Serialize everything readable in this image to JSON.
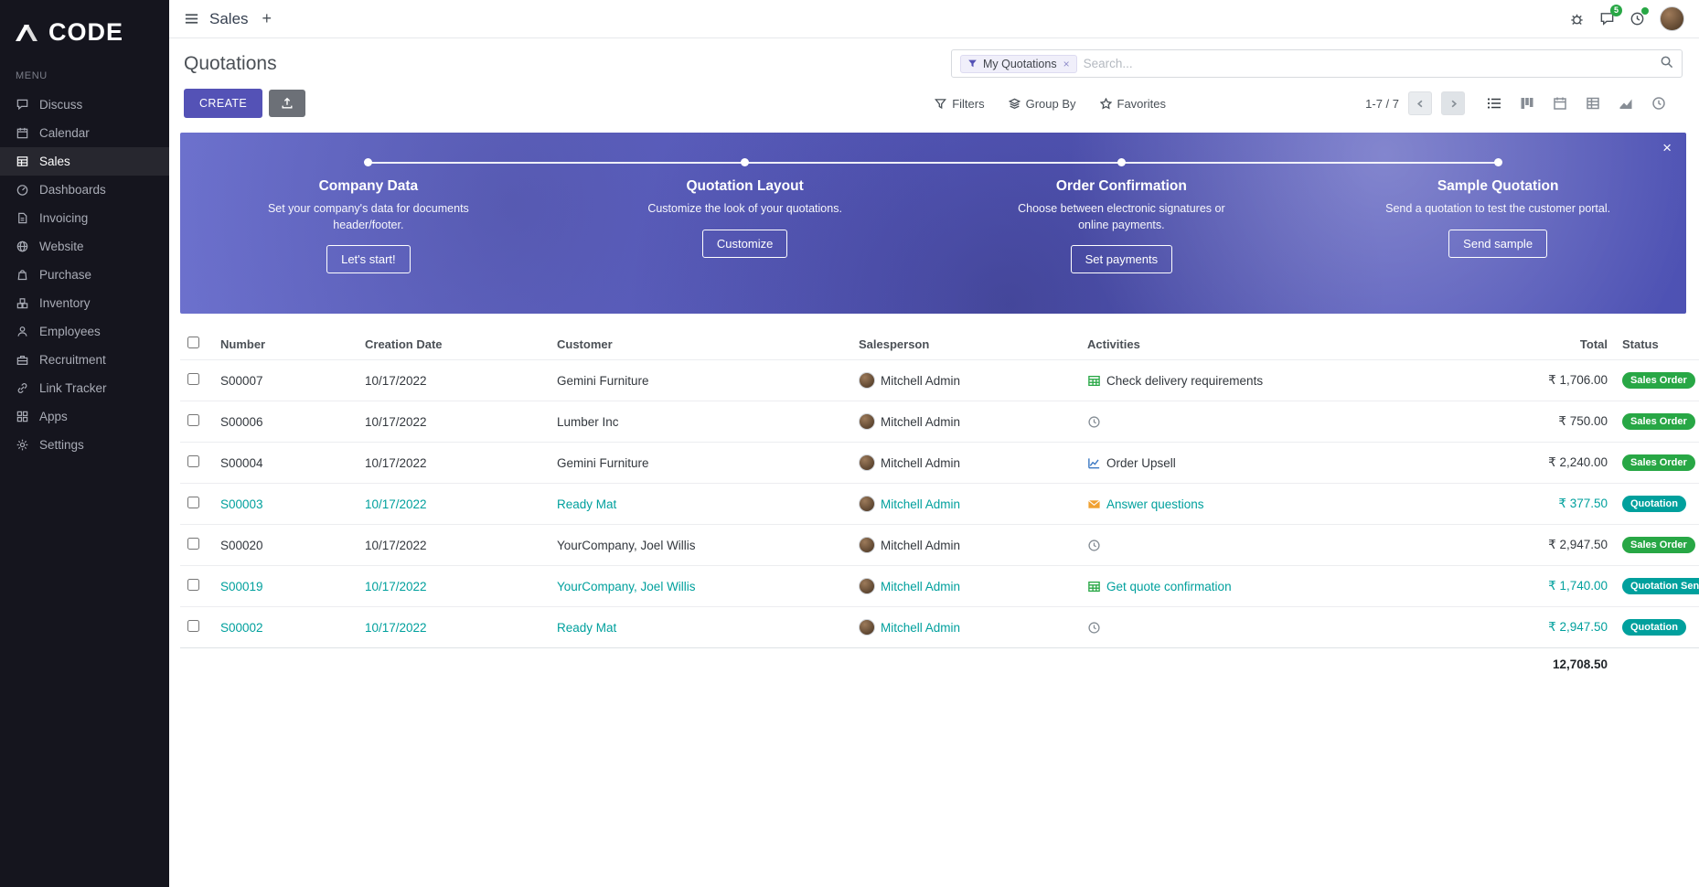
{
  "colors": {
    "accent": "#5452b6",
    "teal": "#00a09d",
    "green": "#28a745",
    "banner": "#5b5ec6",
    "sidebar_bg": "#15151e"
  },
  "sidebar": {
    "logo": "CODE",
    "menu_label": "MENU",
    "items": [
      {
        "label": "Discuss",
        "icon": "discuss",
        "active": false
      },
      {
        "label": "Calendar",
        "icon": "calendar",
        "active": false
      },
      {
        "label": "Sales",
        "icon": "sales",
        "active": true
      },
      {
        "label": "Dashboards",
        "icon": "dashboards",
        "active": false
      },
      {
        "label": "Invoicing",
        "icon": "invoicing",
        "active": false
      },
      {
        "label": "Website",
        "icon": "website",
        "active": false
      },
      {
        "label": "Purchase",
        "icon": "purchase",
        "active": false
      },
      {
        "label": "Inventory",
        "icon": "inventory",
        "active": false
      },
      {
        "label": "Employees",
        "icon": "employees",
        "active": false
      },
      {
        "label": "Recruitment",
        "icon": "recruitment",
        "active": false
      },
      {
        "label": "Link Tracker",
        "icon": "link",
        "active": false
      },
      {
        "label": "Apps",
        "icon": "apps",
        "active": false
      },
      {
        "label": "Settings",
        "icon": "settings",
        "active": false
      }
    ]
  },
  "topbar": {
    "app_title": "Sales",
    "plus": "+",
    "messages_badge": "5"
  },
  "control_panel": {
    "breadcrumb": "Quotations",
    "create_label": "CREATE",
    "facet_label": "My Quotations",
    "facet_remove": "×",
    "search_placeholder": "Search...",
    "filters_label": "Filters",
    "groupby_label": "Group By",
    "favorites_label": "Favorites",
    "pager": "1-7 / 7",
    "active_view": "list"
  },
  "banner": {
    "close": "×",
    "steps": [
      {
        "title": "Company Data",
        "desc": "Set your company's data for documents header/footer.",
        "button": "Let's start!"
      },
      {
        "title": "Quotation Layout",
        "desc": "Customize the look of your quotations.",
        "button": "Customize"
      },
      {
        "title": "Order Confirmation",
        "desc": "Choose between electronic signatures or online payments.",
        "button": "Set payments"
      },
      {
        "title": "Sample Quotation",
        "desc": "Send a quotation to test the customer portal.",
        "button": "Send sample"
      }
    ]
  },
  "table": {
    "headers": {
      "number": "Number",
      "creation_date": "Creation Date",
      "customer": "Customer",
      "salesperson": "Salesperson",
      "activities": "Activities",
      "total": "Total",
      "status": "Status"
    },
    "rows": [
      {
        "number": "S00007",
        "date": "10/17/2022",
        "customer": "Gemini Furniture",
        "salesperson": "Mitchell Admin",
        "activity_icon": "spreadsheet",
        "activity": "Check delivery requirements",
        "total": "₹ 1,706.00",
        "status": "Sales Order",
        "status_color": "green",
        "highlight": false
      },
      {
        "number": "S00006",
        "date": "10/17/2022",
        "customer": "Lumber Inc",
        "salesperson": "Mitchell Admin",
        "activity_icon": "clock",
        "activity": "",
        "total": "₹ 750.00",
        "status": "Sales Order",
        "status_color": "green",
        "highlight": false
      },
      {
        "number": "S00004",
        "date": "10/17/2022",
        "customer": "Gemini Furniture",
        "salesperson": "Mitchell Admin",
        "activity_icon": "chart",
        "activity": "Order Upsell",
        "total": "₹ 2,240.00",
        "status": "Sales Order",
        "status_color": "green",
        "highlight": false
      },
      {
        "number": "S00003",
        "date": "10/17/2022",
        "customer": "Ready Mat",
        "salesperson": "Mitchell Admin",
        "activity_icon": "envelope",
        "activity": "Answer questions",
        "total": "₹ 377.50",
        "status": "Quotation",
        "status_color": "teal",
        "highlight": true
      },
      {
        "number": "S00020",
        "date": "10/17/2022",
        "customer": "YourCompany, Joel Willis",
        "salesperson": "Mitchell Admin",
        "activity_icon": "clock",
        "activity": "",
        "total": "₹ 2,947.50",
        "status": "Sales Order",
        "status_color": "green",
        "highlight": false
      },
      {
        "number": "S00019",
        "date": "10/17/2022",
        "customer": "YourCompany, Joel Willis",
        "salesperson": "Mitchell Admin",
        "activity_icon": "spreadsheet",
        "activity": "Get quote confirmation",
        "total": "₹ 1,740.00",
        "status": "Quotation Sent",
        "status_color": "teal",
        "highlight": true
      },
      {
        "number": "S00002",
        "date": "10/17/2022",
        "customer": "Ready Mat",
        "salesperson": "Mitchell Admin",
        "activity_icon": "clock",
        "activity": "",
        "total": "₹ 2,947.50",
        "status": "Quotation",
        "status_color": "teal",
        "highlight": true
      }
    ],
    "footer_total": "12,708.50"
  }
}
